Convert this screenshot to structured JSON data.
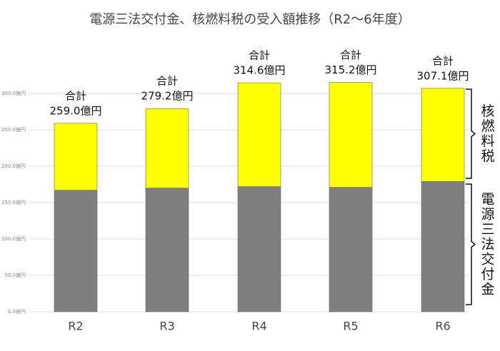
{
  "chart_data": {
    "type": "bar",
    "stacked": true,
    "title": "電源三法交付金、核燃料税の受入額推移（R2～6年度）",
    "categories": [
      "R2",
      "R3",
      "R4",
      "R5",
      "R6"
    ],
    "series": [
      {
        "name": "電源三法交付金",
        "color": "#7f7f7f",
        "values": [
          167,
          170,
          172,
          171,
          179
        ]
      },
      {
        "name": "核燃料税",
        "color": "#ffff00",
        "values": [
          92.0,
          109.2,
          142.6,
          144.2,
          128.1
        ]
      }
    ],
    "total_caption": "合計",
    "total_labels": [
      "259.0億円",
      "279.2億円",
      "314.6億円",
      "315.2億円",
      "307.1億円"
    ],
    "ylim": [
      0,
      320
    ],
    "yticks": [
      {
        "value": 0,
        "label": "0.0億円"
      },
      {
        "value": 50,
        "label": "50.0億円"
      },
      {
        "value": 100,
        "label": "100.0億円"
      },
      {
        "value": 150,
        "label": "150.0億円"
      },
      {
        "value": 200,
        "label": "200.0億円"
      },
      {
        "value": 250,
        "label": "250.0億円"
      },
      {
        "value": 300,
        "label": "300.0億円"
      }
    ],
    "grid": true
  }
}
